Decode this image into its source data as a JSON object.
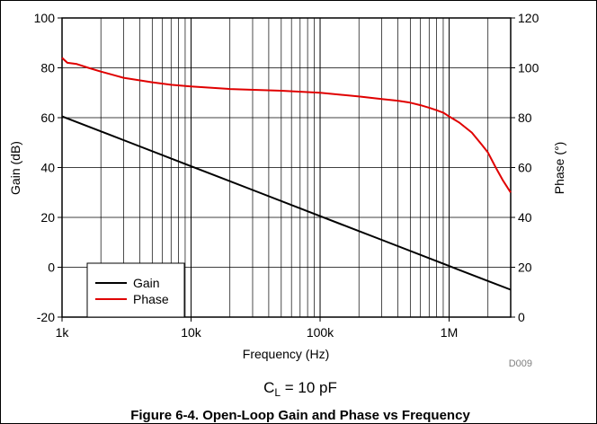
{
  "chart_data": {
    "type": "line",
    "xlabel": "Frequency (Hz)",
    "ylabel_left": "Gain (dB)",
    "ylabel_right": "Phase (°)",
    "x_scale": "log",
    "xlim": [
      1000,
      3000000
    ],
    "ylim_left": [
      -20,
      100
    ],
    "ylim_right": [
      0,
      120
    ],
    "x_ticks": [
      {
        "value": 1000,
        "label": "1k"
      },
      {
        "value": 10000,
        "label": "10k"
      },
      {
        "value": 100000,
        "label": "100k"
      },
      {
        "value": 1000000,
        "label": "1M"
      }
    ],
    "y_ticks_left": [
      {
        "value": 100,
        "label": "100"
      },
      {
        "value": 80,
        "label": "80"
      },
      {
        "value": 60,
        "label": "60"
      },
      {
        "value": 40,
        "label": "40"
      },
      {
        "value": 20,
        "label": "20"
      },
      {
        "value": 0,
        "label": "0"
      },
      {
        "value": -20,
        "label": "-20"
      }
    ],
    "y_ticks_right": [
      {
        "value": 120,
        "label": "120"
      },
      {
        "value": 100,
        "label": "100"
      },
      {
        "value": 80,
        "label": "80"
      },
      {
        "value": 60,
        "label": "60"
      },
      {
        "value": 40,
        "label": "40"
      },
      {
        "value": 20,
        "label": "20"
      },
      {
        "value": 0,
        "label": "0"
      }
    ],
    "grid": true,
    "legend_placement": "bottom-left",
    "series": [
      {
        "name": "Gain",
        "axis": "left",
        "color": "#000000",
        "x": [
          1000,
          3000,
          10000,
          30000,
          100000,
          300000,
          1000000,
          2000000,
          3000000
        ],
        "y": [
          60.5,
          51,
          40.5,
          31,
          20.5,
          11,
          0.5,
          -5.5,
          -9
        ]
      },
      {
        "name": "Phase",
        "axis": "right",
        "color": "#e00000",
        "x": [
          1000,
          1100,
          1300,
          1600,
          2000,
          3000,
          5000,
          7000,
          10000,
          20000,
          50000,
          100000,
          200000,
          300000,
          400000,
          500000,
          600000,
          700000,
          800000,
          900000,
          1000000,
          1200000,
          1500000,
          1800000,
          2000000,
          2300000,
          2600000,
          3000000
        ],
        "y": [
          104,
          102,
          101.5,
          100,
          98.5,
          96,
          94.2,
          93.2,
          92.5,
          91.5,
          90.8,
          90,
          88.5,
          87.5,
          86.8,
          86,
          85,
          84,
          83,
          82,
          80.5,
          78,
          74,
          69,
          66,
          60,
          55,
          50
        ]
      }
    ],
    "code": "D009",
    "condition": {
      "main": "C",
      "sub": "L",
      "rest": " = 10 pF"
    },
    "caption": "Figure 6-4. Open-Loop Gain and Phase vs Frequency"
  }
}
